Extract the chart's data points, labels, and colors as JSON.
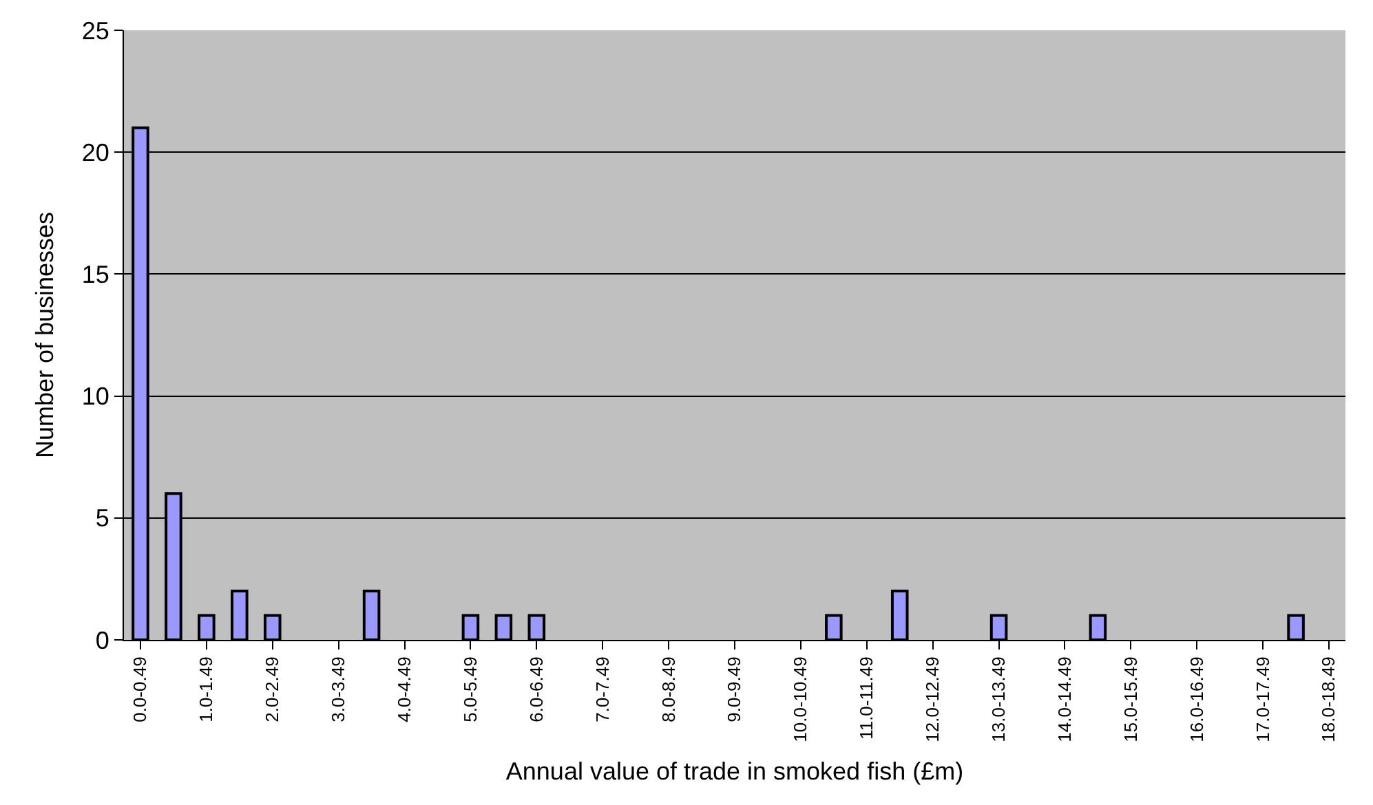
{
  "chart_data": {
    "type": "bar",
    "xlabel": "Annual value of trade in smoked fish (£m)",
    "ylabel": "Number of businesses",
    "categories": [
      "0.0-0.49",
      null,
      "1.0-1.49",
      null,
      "2.0-2.49",
      null,
      "3.0-3.49",
      null,
      "4.0-4.49",
      null,
      "5.0-5.49",
      null,
      "6.0-6.49",
      null,
      "7.0-7.49",
      null,
      "8.0-8.49",
      null,
      "9.0-9.49",
      null,
      "10.0-10.49",
      null,
      "11.0-11.49",
      null,
      "12.0-12.49",
      null,
      "13.0-13.49",
      null,
      "14.0-14.49",
      null,
      "15.0-15.49",
      null,
      "16.0-16.49",
      null,
      "17.0-17.49",
      null,
      "18.0-18.49"
    ],
    "values": [
      21,
      6,
      1,
      2,
      1,
      0,
      0,
      2,
      0,
      0,
      1,
      1,
      1,
      0,
      0,
      0,
      0,
      0,
      0,
      0,
      0,
      1,
      0,
      2,
      0,
      0,
      1,
      0,
      0,
      1,
      0,
      0,
      0,
      0,
      0,
      1,
      0
    ],
    "color": "#9999ff",
    "ylim": [
      0,
      25
    ],
    "yticks": [
      0,
      5,
      10,
      15,
      20,
      25
    ],
    "grid": "y"
  }
}
